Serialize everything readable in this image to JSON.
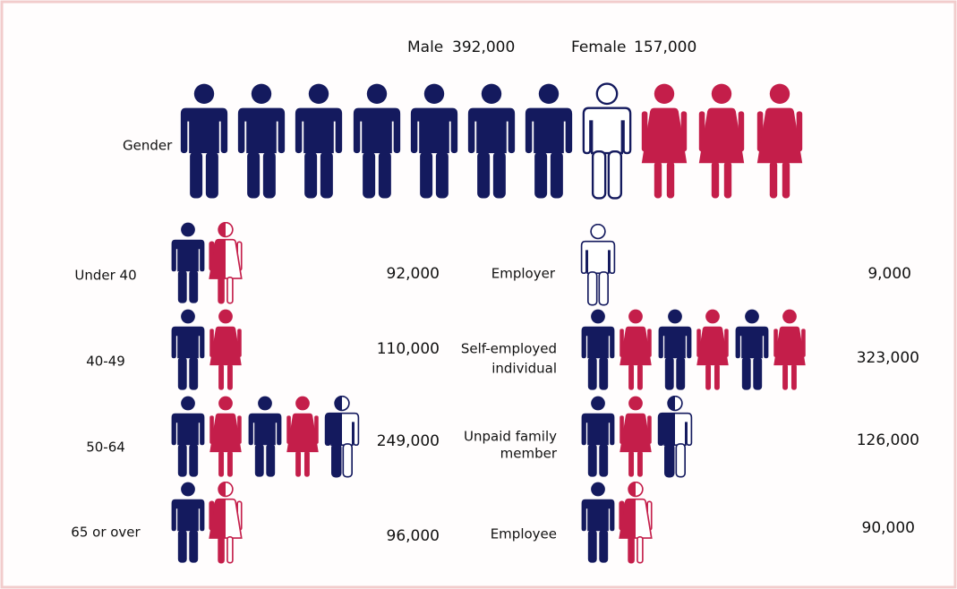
{
  "header": {
    "male": {
      "label": "Male",
      "value": "392,000"
    },
    "female": {
      "label": "Female",
      "value": "157,000"
    }
  },
  "gender_label": "Gender",
  "age_rows": [
    {
      "label": "Under 40",
      "value": "92,000"
    },
    {
      "label": "40-49",
      "value": "110,000"
    },
    {
      "label": "50-64",
      "value": "249,000"
    },
    {
      "label": "65 or over",
      "value": "96,000"
    }
  ],
  "status_rows": [
    {
      "label_lines": [
        "Employer"
      ],
      "value": "9,000"
    },
    {
      "label_lines": [
        "Self-employed",
        "individual"
      ],
      "value": "323,000"
    },
    {
      "label_lines": [
        "Unpaid family",
        "member"
      ],
      "value": "126,000"
    },
    {
      "label_lines": [
        "Employee"
      ],
      "value": "90,000"
    }
  ]
}
